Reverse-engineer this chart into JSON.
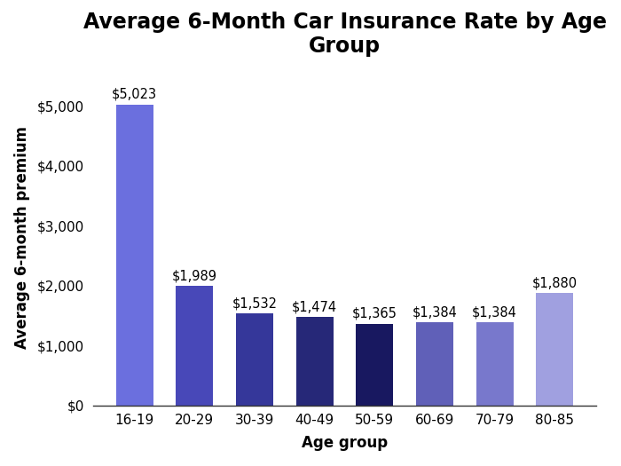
{
  "title": "Average 6-Month Car Insurance Rate by Age\nGroup",
  "xlabel": "Age group",
  "ylabel": "Average 6-month premium",
  "categories": [
    "16-19",
    "20-29",
    "30-39",
    "40-49",
    "50-59",
    "60-69",
    "70-79",
    "80-85"
  ],
  "values": [
    5023,
    1989,
    1532,
    1474,
    1365,
    1384,
    1384,
    1880
  ],
  "bar_colors": [
    "#6B6FDE",
    "#4848B8",
    "#35379A",
    "#262878",
    "#181860",
    "#6060B8",
    "#7878CC",
    "#A0A0E0"
  ],
  "labels": [
    "$5,023",
    "$1,989",
    "$1,532",
    "$1,474",
    "$1,365",
    "$1,384",
    "$1,384",
    "$1,880"
  ],
  "ylim": [
    0,
    5600
  ],
  "yticks": [
    0,
    1000,
    2000,
    3000,
    4000,
    5000
  ],
  "ytick_labels": [
    "$0",
    "$1,000",
    "$2,000",
    "$3,000",
    "$4,000",
    "$5,000"
  ],
  "background_color": "#FFFFFF",
  "title_fontsize": 17,
  "label_fontsize": 12,
  "tick_fontsize": 11,
  "bar_label_fontsize": 10.5,
  "bar_width": 0.62
}
